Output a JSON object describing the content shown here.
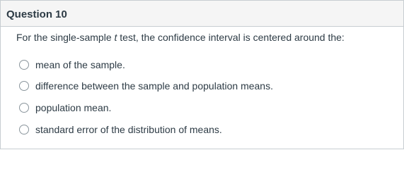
{
  "header": {
    "title": "Question 10"
  },
  "question": {
    "before": "For the single-sample ",
    "emphasis": "t",
    "after": " test, the confidence interval is centered around the:"
  },
  "options": [
    "mean of the sample.",
    "difference between the sample and population means.",
    "population mean.",
    "standard error of the distribution of means."
  ]
}
